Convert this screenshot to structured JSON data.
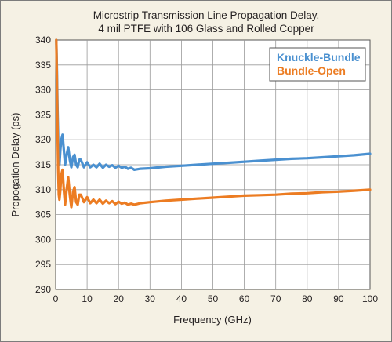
{
  "chart_data": {
    "type": "line",
    "title_lines": [
      "Microstrip Transmission Line Propagation Delay,",
      "4 mil PTFE with 106 Glass and Rolled Copper"
    ],
    "xlabel": "Frequency (GHz)",
    "ylabel": "Propogation Delay (ps)",
    "xlim": [
      0,
      100
    ],
    "ylim": [
      290,
      340
    ],
    "xticks": [
      0,
      10,
      20,
      30,
      40,
      50,
      60,
      70,
      80,
      90,
      100
    ],
    "yticks": [
      290,
      295,
      300,
      305,
      310,
      315,
      320,
      325,
      330,
      335,
      340
    ],
    "grid": true,
    "legend_position": "top-right",
    "series": [
      {
        "name": "Knuckle-Bundle",
        "color": "#4a90d0",
        "x": [
          0.2,
          0.4,
          0.6,
          0.8,
          1.0,
          1.2,
          1.5,
          1.8,
          2.2,
          2.6,
          3.0,
          3.5,
          4.0,
          4.5,
          5.0,
          5.5,
          6.0,
          6.5,
          7.0,
          7.5,
          8.0,
          9.0,
          10.0,
          11.0,
          12.0,
          13.0,
          14.0,
          15.0,
          16.0,
          17.0,
          18.0,
          19.0,
          20.0,
          21.0,
          22.0,
          23.0,
          24.0,
          25.0,
          27.0,
          30.0,
          35.0,
          40.0,
          45.0,
          50.0,
          55.0,
          60.0,
          65.0,
          70.0,
          75.0,
          80.0,
          85.0,
          90.0,
          95.0,
          100.0
        ],
        "y": [
          340,
          334,
          326,
          320,
          316,
          315,
          318,
          320,
          321,
          318,
          315,
          317,
          318.5,
          316,
          314.5,
          316.5,
          317,
          315,
          314.5,
          316,
          316,
          314.5,
          315.5,
          314.5,
          315,
          314.5,
          315.2,
          314.4,
          315,
          314.6,
          314.9,
          314.4,
          314.8,
          314.4,
          314.6,
          314.2,
          314.4,
          314,
          314.2,
          314.3,
          314.6,
          314.8,
          315.0,
          315.2,
          315.4,
          315.6,
          315.8,
          316.0,
          316.2,
          316.3,
          316.5,
          316.7,
          316.9,
          317.2
        ]
      },
      {
        "name": "Bundle-Open",
        "color": "#ec7c22",
        "x": [
          0.2,
          0.4,
          0.6,
          0.8,
          1.0,
          1.2,
          1.5,
          1.8,
          2.2,
          2.6,
          3.0,
          3.5,
          4.0,
          4.5,
          5.0,
          5.5,
          6.0,
          6.5,
          7.0,
          7.5,
          8.0,
          9.0,
          10.0,
          11.0,
          12.0,
          13.0,
          14.0,
          15.0,
          16.0,
          17.0,
          18.0,
          19.0,
          20.0,
          21.0,
          22.0,
          23.0,
          24.0,
          25.0,
          27.0,
          30.0,
          35.0,
          40.0,
          45.0,
          50.0,
          55.0,
          60.0,
          65.0,
          70.0,
          75.0,
          80.0,
          85.0,
          90.0,
          95.0,
          100.0
        ],
        "y": [
          340,
          332,
          322,
          314,
          309,
          308,
          310,
          313,
          314,
          310,
          307,
          310,
          312.5,
          309,
          306.5,
          309.5,
          310.5,
          307.5,
          307,
          309,
          309,
          307.5,
          308.5,
          307.3,
          308,
          307.3,
          308,
          307.2,
          307.8,
          307.3,
          307.7,
          307.1,
          307.6,
          307.2,
          307.4,
          307,
          307.2,
          307,
          307.3,
          307.5,
          307.8,
          308.0,
          308.2,
          308.4,
          308.6,
          308.8,
          308.9,
          309.0,
          309.2,
          309.3,
          309.5,
          309.6,
          309.8,
          310.0
        ]
      }
    ]
  }
}
